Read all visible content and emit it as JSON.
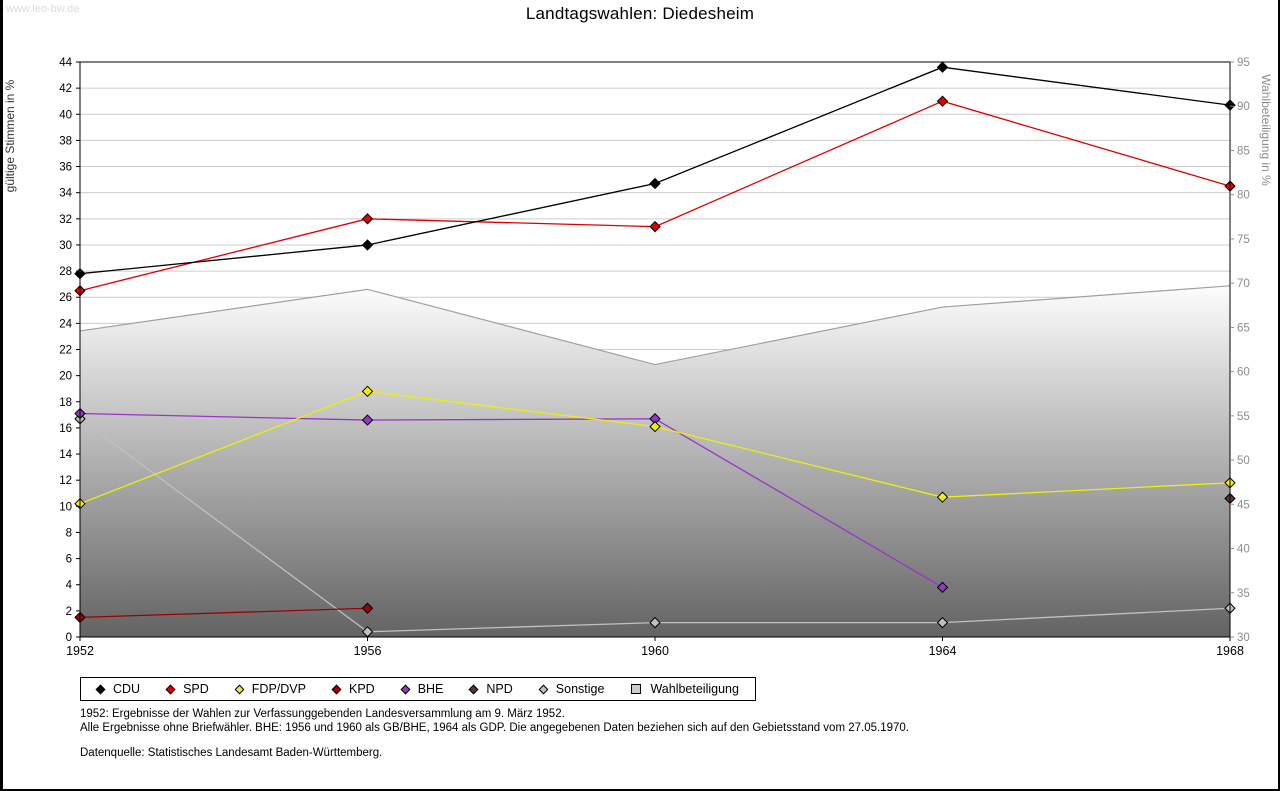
{
  "watermark": "www.leo-bw.de",
  "title": "Landtagswahlen: Diedesheim",
  "chart_data": {
    "type": "line",
    "title": "Landtagswahlen: Diedesheim",
    "x": [
      1952,
      1956,
      1960,
      1964,
      1968
    ],
    "x_ticks": [
      "1952",
      "1956",
      "1960",
      "1964",
      "1968"
    ],
    "left_axis": {
      "label": "gültige Stimmen in %",
      "min": 0,
      "max": 44,
      "step": 2
    },
    "right_axis": {
      "label": "Wahlbeteiligung in %",
      "min": 30,
      "max": 95,
      "step": 5
    },
    "grid": true,
    "legend_position": "bottom",
    "series": [
      {
        "name": "CDU",
        "axis": "left",
        "style": "line",
        "color": "#000000",
        "values": [
          27.8,
          30.0,
          34.7,
          43.6,
          40.7
        ]
      },
      {
        "name": "SPD",
        "axis": "left",
        "style": "line",
        "color": "#e00000",
        "values": [
          26.5,
          32.0,
          31.4,
          41.0,
          34.5
        ]
      },
      {
        "name": "FDP/DVP",
        "axis": "left",
        "style": "line",
        "color": "#f0f000",
        "values": [
          10.2,
          18.8,
          16.1,
          10.7,
          11.8
        ]
      },
      {
        "name": "KPD",
        "axis": "left",
        "style": "line",
        "color": "#a00000",
        "values": [
          1.5,
          2.2,
          null,
          null,
          null
        ]
      },
      {
        "name": "BHE",
        "axis": "left",
        "style": "line",
        "color": "#9933cc",
        "values": [
          17.1,
          16.6,
          16.7,
          3.8,
          null
        ]
      },
      {
        "name": "NPD",
        "axis": "left",
        "style": "line",
        "color": "#663333",
        "values": [
          null,
          null,
          null,
          null,
          10.6
        ]
      },
      {
        "name": "Sonstige",
        "axis": "left",
        "style": "line",
        "color": "#c0c0c0",
        "values": [
          16.7,
          0.4,
          1.1,
          1.1,
          2.2
        ]
      },
      {
        "name": "Wahlbeteiligung",
        "axis": "right",
        "style": "area",
        "color": "#a0a0a0",
        "values": [
          64.6,
          69.3,
          60.8,
          67.3,
          69.7
        ]
      }
    ],
    "area_gradient": {
      "top": "#fdfdfd",
      "bottom": "#636363"
    },
    "grid_color": "#cccccc",
    "right_axis_color": "#8c8c8c"
  },
  "legend": {
    "items": [
      {
        "label": "CDU",
        "color": "#000000",
        "shape": "diamond"
      },
      {
        "label": "SPD",
        "color": "#e00000",
        "shape": "diamond"
      },
      {
        "label": "FDP/DVP",
        "color": "#f0f000",
        "shape": "diamond"
      },
      {
        "label": "KPD",
        "color": "#a00000",
        "shape": "diamond"
      },
      {
        "label": "BHE",
        "color": "#9933cc",
        "shape": "diamond"
      },
      {
        "label": "NPD",
        "color": "#663333",
        "shape": "diamond"
      },
      {
        "label": "Sonstige",
        "color": "#c0c0c0",
        "shape": "diamond"
      },
      {
        "label": "Wahlbeteiligung",
        "color": "#cccccc",
        "shape": "square"
      }
    ]
  },
  "footnotes": {
    "line1": "1952: Ergebnisse der Wahlen zur Verfassunggebenden Landesversammlung am 9. März 1952.",
    "line2": "Alle Ergebnisse ohne Briefwähler. BHE: 1956 und 1960 als GB/BHE, 1964 als GDP. Die angegebenen Daten beziehen sich auf den Gebietsstand vom 27.05.1970.",
    "source": "Datenquelle: Statistisches Landesamt Baden-Württemberg."
  }
}
